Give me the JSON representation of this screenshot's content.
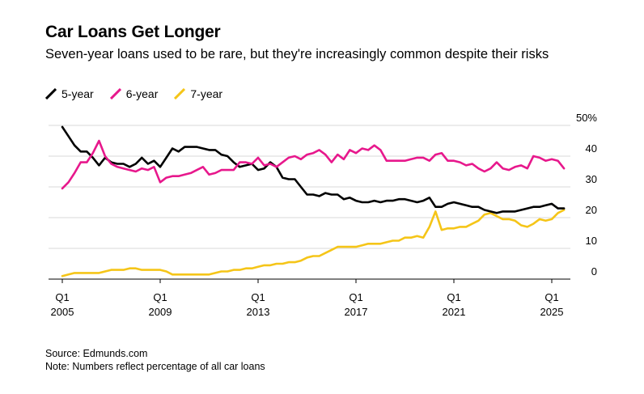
{
  "title": "Car Loans Get Longer",
  "subtitle": "Seven-year loans used to be rare, but they're increasingly common despite their risks",
  "source": "Source: Edmunds.com",
  "note": "Note: Numbers reflect percentage of all car loans",
  "chart_data": {
    "type": "line",
    "title": "Car Loans Get Longer",
    "xlabel": "",
    "ylabel": "",
    "ylim": [
      0,
      50
    ],
    "y_ticks": [
      0,
      10,
      20,
      30,
      40,
      50
    ],
    "y_tick_labels": [
      "0",
      "10",
      "20",
      "30",
      "40",
      "50%"
    ],
    "x_ticks": [
      {
        "year": 2005,
        "top": "Q1",
        "bottom": "2005"
      },
      {
        "year": 2009,
        "top": "Q1",
        "bottom": "2009"
      },
      {
        "year": 2013,
        "top": "Q1",
        "bottom": "2013"
      },
      {
        "year": 2017,
        "top": "Q1",
        "bottom": "2017"
      },
      {
        "year": 2021,
        "top": "Q1",
        "bottom": "2021"
      },
      {
        "year": 2025,
        "top": "Q1",
        "bottom": "2025"
      }
    ],
    "grid": true,
    "legend": "top-left",
    "series": [
      {
        "name": "5-year",
        "color": "#000000",
        "points": [
          [
            2005.0,
            49.5
          ],
          [
            2005.25,
            46.5
          ],
          [
            2005.5,
            43.5
          ],
          [
            2005.75,
            41.5
          ],
          [
            2006.0,
            41.5
          ],
          [
            2006.25,
            39.5
          ],
          [
            2006.5,
            37.0
          ],
          [
            2006.75,
            39.5
          ],
          [
            2007.0,
            38.0
          ],
          [
            2007.25,
            37.5
          ],
          [
            2007.5,
            37.5
          ],
          [
            2007.75,
            36.5
          ],
          [
            2008.0,
            37.5
          ],
          [
            2008.25,
            39.5
          ],
          [
            2008.5,
            37.5
          ],
          [
            2008.75,
            38.5
          ],
          [
            2009.0,
            36.5
          ],
          [
            2009.25,
            39.5
          ],
          [
            2009.5,
            42.5
          ],
          [
            2009.75,
            41.5
          ],
          [
            2010.0,
            43.0
          ],
          [
            2010.25,
            43.0
          ],
          [
            2010.5,
            43.0
          ],
          [
            2010.75,
            42.5
          ],
          [
            2011.0,
            42.0
          ],
          [
            2011.25,
            42.0
          ],
          [
            2011.5,
            40.5
          ],
          [
            2011.75,
            40.0
          ],
          [
            2012.0,
            38.0
          ],
          [
            2012.25,
            36.5
          ],
          [
            2012.5,
            37.0
          ],
          [
            2012.75,
            37.5
          ],
          [
            2013.0,
            35.5
          ],
          [
            2013.25,
            36.0
          ],
          [
            2013.5,
            38.0
          ],
          [
            2013.75,
            36.5
          ],
          [
            2014.0,
            33.0
          ],
          [
            2014.25,
            32.5
          ],
          [
            2014.5,
            32.5
          ],
          [
            2014.75,
            30.0
          ],
          [
            2015.0,
            27.5
          ],
          [
            2015.25,
            27.5
          ],
          [
            2015.5,
            27.0
          ],
          [
            2015.75,
            28.0
          ],
          [
            2016.0,
            27.5
          ],
          [
            2016.25,
            27.5
          ],
          [
            2016.5,
            26.0
          ],
          [
            2016.75,
            26.5
          ],
          [
            2017.0,
            25.5
          ],
          [
            2017.25,
            25.0
          ],
          [
            2017.5,
            25.0
          ],
          [
            2017.75,
            25.5
          ],
          [
            2018.0,
            25.0
          ],
          [
            2018.25,
            25.5
          ],
          [
            2018.5,
            25.5
          ],
          [
            2018.75,
            26.0
          ],
          [
            2019.0,
            26.0
          ],
          [
            2019.25,
            25.5
          ],
          [
            2019.5,
            25.0
          ],
          [
            2019.75,
            25.5
          ],
          [
            2020.0,
            26.5
          ],
          [
            2020.25,
            23.5
          ],
          [
            2020.5,
            23.5
          ],
          [
            2020.75,
            24.5
          ],
          [
            2021.0,
            25.0
          ],
          [
            2021.25,
            24.5
          ],
          [
            2021.5,
            24.0
          ],
          [
            2021.75,
            23.5
          ],
          [
            2022.0,
            23.5
          ],
          [
            2022.25,
            22.5
          ],
          [
            2022.5,
            22.0
          ],
          [
            2022.75,
            21.5
          ],
          [
            2023.0,
            22.0
          ],
          [
            2023.25,
            22.0
          ],
          [
            2023.5,
            22.0
          ],
          [
            2023.75,
            22.5
          ],
          [
            2024.0,
            23.0
          ],
          [
            2024.25,
            23.5
          ],
          [
            2024.5,
            23.5
          ],
          [
            2024.75,
            24.0
          ],
          [
            2025.0,
            24.5
          ],
          [
            2025.25,
            23.0
          ],
          [
            2025.5,
            23.0
          ]
        ]
      },
      {
        "name": "6-year",
        "color": "#e7188c",
        "points": [
          [
            2005.0,
            29.5
          ],
          [
            2005.25,
            31.5
          ],
          [
            2005.5,
            34.5
          ],
          [
            2005.75,
            38.0
          ],
          [
            2006.0,
            38.0
          ],
          [
            2006.25,
            41.0
          ],
          [
            2006.5,
            45.0
          ],
          [
            2006.75,
            40.0
          ],
          [
            2007.0,
            37.5
          ],
          [
            2007.25,
            36.5
          ],
          [
            2007.5,
            36.0
          ],
          [
            2007.75,
            35.5
          ],
          [
            2008.0,
            35.0
          ],
          [
            2008.25,
            36.0
          ],
          [
            2008.5,
            35.5
          ],
          [
            2008.75,
            36.5
          ],
          [
            2009.0,
            31.5
          ],
          [
            2009.25,
            33.0
          ],
          [
            2009.5,
            33.5
          ],
          [
            2009.75,
            33.5
          ],
          [
            2010.0,
            34.0
          ],
          [
            2010.25,
            34.5
          ],
          [
            2010.5,
            35.5
          ],
          [
            2010.75,
            36.5
          ],
          [
            2011.0,
            34.0
          ],
          [
            2011.25,
            34.5
          ],
          [
            2011.5,
            35.5
          ],
          [
            2011.75,
            35.5
          ],
          [
            2012.0,
            35.5
          ],
          [
            2012.25,
            38.0
          ],
          [
            2012.5,
            38.0
          ],
          [
            2012.75,
            37.5
          ],
          [
            2013.0,
            39.5
          ],
          [
            2013.25,
            37.0
          ],
          [
            2013.5,
            37.5
          ],
          [
            2013.75,
            36.5
          ],
          [
            2014.0,
            38.0
          ],
          [
            2014.25,
            39.5
          ],
          [
            2014.5,
            40.0
          ],
          [
            2014.75,
            39.0
          ],
          [
            2015.0,
            40.5
          ],
          [
            2015.25,
            41.0
          ],
          [
            2015.5,
            42.0
          ],
          [
            2015.75,
            40.5
          ],
          [
            2016.0,
            38.0
          ],
          [
            2016.25,
            40.5
          ],
          [
            2016.5,
            39.0
          ],
          [
            2016.75,
            42.0
          ],
          [
            2017.0,
            41.0
          ],
          [
            2017.25,
            42.5
          ],
          [
            2017.5,
            42.0
          ],
          [
            2017.75,
            43.5
          ],
          [
            2018.0,
            42.0
          ],
          [
            2018.25,
            38.5
          ],
          [
            2018.5,
            38.5
          ],
          [
            2018.75,
            38.5
          ],
          [
            2019.0,
            38.5
          ],
          [
            2019.25,
            39.0
          ],
          [
            2019.5,
            39.5
          ],
          [
            2019.75,
            39.5
          ],
          [
            2020.0,
            38.5
          ],
          [
            2020.25,
            40.5
          ],
          [
            2020.5,
            41.0
          ],
          [
            2020.75,
            38.5
          ],
          [
            2021.0,
            38.5
          ],
          [
            2021.25,
            38.0
          ],
          [
            2021.5,
            37.0
          ],
          [
            2021.75,
            37.5
          ],
          [
            2022.0,
            36.0
          ],
          [
            2022.25,
            35.0
          ],
          [
            2022.5,
            36.0
          ],
          [
            2022.75,
            38.0
          ],
          [
            2023.0,
            36.0
          ],
          [
            2023.25,
            35.5
          ],
          [
            2023.5,
            36.5
          ],
          [
            2023.75,
            37.0
          ],
          [
            2024.0,
            36.0
          ],
          [
            2024.25,
            40.0
          ],
          [
            2024.5,
            39.5
          ],
          [
            2024.75,
            38.5
          ],
          [
            2025.0,
            39.0
          ],
          [
            2025.25,
            38.5
          ],
          [
            2025.5,
            36.0
          ]
        ]
      },
      {
        "name": "7-year",
        "color": "#f5c518",
        "points": [
          [
            2005.0,
            1.0
          ],
          [
            2005.25,
            1.5
          ],
          [
            2005.5,
            2.0
          ],
          [
            2005.75,
            2.0
          ],
          [
            2006.0,
            2.0
          ],
          [
            2006.25,
            2.0
          ],
          [
            2006.5,
            2.0
          ],
          [
            2006.75,
            2.5
          ],
          [
            2007.0,
            3.0
          ],
          [
            2007.25,
            3.0
          ],
          [
            2007.5,
            3.0
          ],
          [
            2007.75,
            3.5
          ],
          [
            2008.0,
            3.5
          ],
          [
            2008.25,
            3.0
          ],
          [
            2008.5,
            3.0
          ],
          [
            2008.75,
            3.0
          ],
          [
            2009.0,
            3.0
          ],
          [
            2009.25,
            2.5
          ],
          [
            2009.5,
            1.5
          ],
          [
            2009.75,
            1.5
          ],
          [
            2010.0,
            1.5
          ],
          [
            2010.25,
            1.5
          ],
          [
            2010.5,
            1.5
          ],
          [
            2010.75,
            1.5
          ],
          [
            2011.0,
            1.5
          ],
          [
            2011.25,
            2.0
          ],
          [
            2011.5,
            2.5
          ],
          [
            2011.75,
            2.5
          ],
          [
            2012.0,
            3.0
          ],
          [
            2012.25,
            3.0
          ],
          [
            2012.5,
            3.5
          ],
          [
            2012.75,
            3.5
          ],
          [
            2013.0,
            4.0
          ],
          [
            2013.25,
            4.5
          ],
          [
            2013.5,
            4.5
          ],
          [
            2013.75,
            5.0
          ],
          [
            2014.0,
            5.0
          ],
          [
            2014.25,
            5.5
          ],
          [
            2014.5,
            5.5
          ],
          [
            2014.75,
            6.0
          ],
          [
            2015.0,
            7.0
          ],
          [
            2015.25,
            7.5
          ],
          [
            2015.5,
            7.5
          ],
          [
            2015.75,
            8.5
          ],
          [
            2016.0,
            9.5
          ],
          [
            2016.25,
            10.5
          ],
          [
            2016.5,
            10.5
          ],
          [
            2016.75,
            10.5
          ],
          [
            2017.0,
            10.5
          ],
          [
            2017.25,
            11.0
          ],
          [
            2017.5,
            11.5
          ],
          [
            2017.75,
            11.5
          ],
          [
            2018.0,
            11.5
          ],
          [
            2018.25,
            12.0
          ],
          [
            2018.5,
            12.5
          ],
          [
            2018.75,
            12.5
          ],
          [
            2019.0,
            13.5
          ],
          [
            2019.25,
            13.5
          ],
          [
            2019.5,
            14.0
          ],
          [
            2019.75,
            13.5
          ],
          [
            2020.0,
            17.0
          ],
          [
            2020.25,
            22.0
          ],
          [
            2020.5,
            16.0
          ],
          [
            2020.75,
            16.5
          ],
          [
            2021.0,
            16.5
          ],
          [
            2021.25,
            17.0
          ],
          [
            2021.5,
            17.0
          ],
          [
            2021.75,
            18.0
          ],
          [
            2022.0,
            19.0
          ],
          [
            2022.25,
            21.0
          ],
          [
            2022.5,
            21.5
          ],
          [
            2022.75,
            20.5
          ],
          [
            2023.0,
            19.5
          ],
          [
            2023.25,
            19.5
          ],
          [
            2023.5,
            19.0
          ],
          [
            2023.75,
            17.5
          ],
          [
            2024.0,
            17.0
          ],
          [
            2024.25,
            18.0
          ],
          [
            2024.5,
            19.5
          ],
          [
            2024.75,
            19.0
          ],
          [
            2025.0,
            19.5
          ],
          [
            2025.25,
            21.5
          ],
          [
            2025.5,
            22.5
          ]
        ]
      }
    ]
  }
}
